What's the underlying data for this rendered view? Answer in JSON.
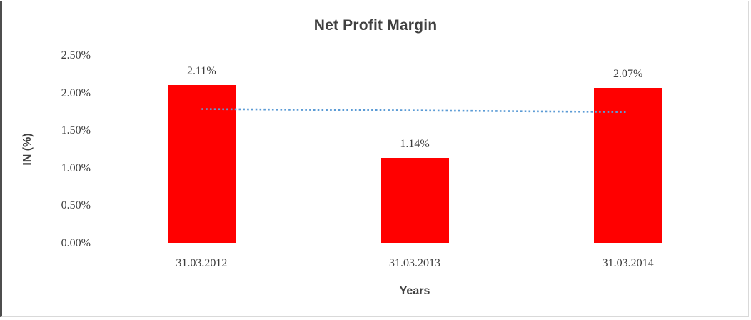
{
  "chart_data": {
    "type": "bar",
    "title": "Net Profit Margin",
    "xlabel": "Years",
    "ylabel": "IN (%)",
    "categories": [
      "31.03.2012",
      "31.03.2013",
      "31.03.2014"
    ],
    "values": [
      2.11,
      1.14,
      2.07
    ],
    "data_labels": [
      "2.11%",
      "1.14%",
      "2.07%"
    ],
    "yticks": [
      0.0,
      0.5,
      1.0,
      1.5,
      2.0,
      2.5
    ],
    "ytick_labels": [
      "0.00%",
      "0.50%",
      "1.00%",
      "1.50%",
      "2.00%",
      "2.50%"
    ],
    "ylim": [
      0,
      2.5
    ],
    "grid": true,
    "legend": false,
    "series_name": "Net Profit Margin",
    "bar_color": "#ff0000",
    "trendline": {
      "type": "linear",
      "style": "dotted",
      "color": "#5b9bd5",
      "start_value": 1.79,
      "end_value": 1.75
    }
  }
}
